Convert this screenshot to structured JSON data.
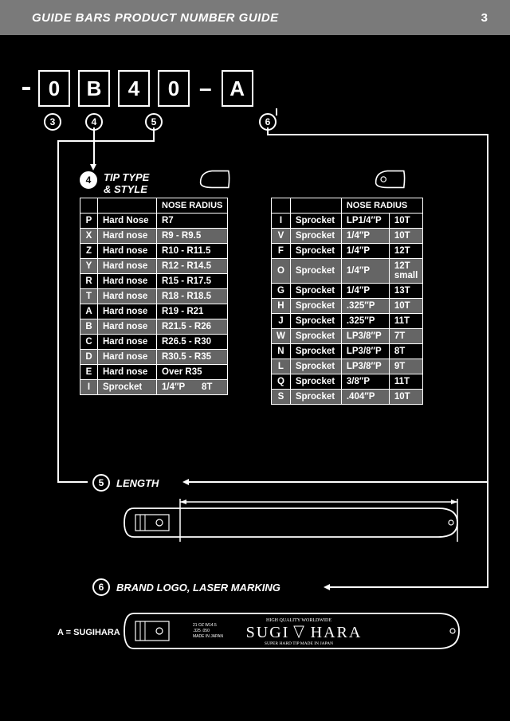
{
  "header": {
    "title": "GUIDE BARS PRODUCT NUMBER GUIDE",
    "page": "3"
  },
  "code": {
    "boxes": [
      "0",
      "B",
      "4",
      "0",
      "A"
    ],
    "dash": "–",
    "refs": [
      "3",
      "4",
      "5",
      "6"
    ]
  },
  "tip": {
    "ref": "4",
    "title_l1": "TIP TYPE",
    "title_l2": "& STYLE",
    "col_radius": "NOSE RADIUS",
    "left": [
      {
        "c": "P",
        "t": "Hard Nose",
        "r": "R7",
        "gray": false
      },
      {
        "c": "X",
        "t": "Hard nose",
        "r": "R9 - R9.5",
        "gray": true
      },
      {
        "c": "Z",
        "t": "Hard nose",
        "r": "R10 - R11.5",
        "gray": false
      },
      {
        "c": "Y",
        "t": "Hard nose",
        "r": "R12 - R14.5",
        "gray": true
      },
      {
        "c": "R",
        "t": "Hard nose",
        "r": "R15 - R17.5",
        "gray": false
      },
      {
        "c": "T",
        "t": "Hard nose",
        "r": "R18 - R18.5",
        "gray": true
      },
      {
        "c": "A",
        "t": "Hard nose",
        "r": "R19 - R21",
        "gray": false
      },
      {
        "c": "B",
        "t": "Hard nose",
        "r": "R21.5 - R26",
        "gray": true
      },
      {
        "c": "C",
        "t": "Hard nose",
        "r": "R26.5 - R30",
        "gray": false
      },
      {
        "c": "D",
        "t": "Hard nose",
        "r": "R30.5 - R35",
        "gray": true
      },
      {
        "c": "E",
        "t": "Hard nose",
        "r": "Over R35",
        "gray": false
      },
      {
        "c": "I",
        "t": "Sprocket",
        "r": "1/4″P",
        "r2": "8T",
        "gray": true
      }
    ],
    "right": [
      {
        "c": "I",
        "t": "Sprocket",
        "r": "LP1/4″P",
        "r2": "10T",
        "gray": false
      },
      {
        "c": "V",
        "t": "Sprocket",
        "r": "1/4″P",
        "r2": "10T",
        "gray": true
      },
      {
        "c": "F",
        "t": "Sprocket",
        "r": "1/4″P",
        "r2": "12T",
        "gray": false
      },
      {
        "c": "O",
        "t": "Sprocket",
        "r": "1/4″P",
        "r2": "12T small",
        "gray": true
      },
      {
        "c": "G",
        "t": "Sprocket",
        "r": "1/4″P",
        "r2": "13T",
        "gray": false
      },
      {
        "c": "H",
        "t": "Sprocket",
        "r": ".325″P",
        "r2": "10T",
        "gray": true
      },
      {
        "c": "J",
        "t": "Sprocket",
        "r": ".325″P",
        "r2": "11T",
        "gray": false
      },
      {
        "c": "W",
        "t": "Sprocket",
        "r": "LP3/8″P",
        "r2": "7T",
        "gray": true
      },
      {
        "c": "N",
        "t": "Sprocket",
        "r": "LP3/8″P",
        "r2": "8T",
        "gray": false
      },
      {
        "c": "L",
        "t": "Sprocket",
        "r": "LP3/8″P",
        "r2": "9T",
        "gray": true
      },
      {
        "c": "Q",
        "t": "Sprocket",
        "r": "3/8″P",
        "r2": "11T",
        "gray": false
      },
      {
        "c": "S",
        "t": "Sprocket",
        "r": ".404″P",
        "r2": "10T",
        "gray": true
      }
    ]
  },
  "length": {
    "ref": "5",
    "label": "LENGTH"
  },
  "brand": {
    "ref": "6",
    "label": "BRAND LOGO, LASER MARKING",
    "note": "A = SUGIHARA",
    "logo_main": "SUGI",
    "logo_main2": "HARA",
    "logo_top": "HIGH  QUALITY   WORLDWIDE",
    "logo_bot": "SUPER  HARD  TIP   MADE IN JAPAN"
  },
  "colors": {
    "bg": "#000000",
    "fg": "#ffffff",
    "header": "#7a7a7a",
    "gray": "#656565"
  }
}
